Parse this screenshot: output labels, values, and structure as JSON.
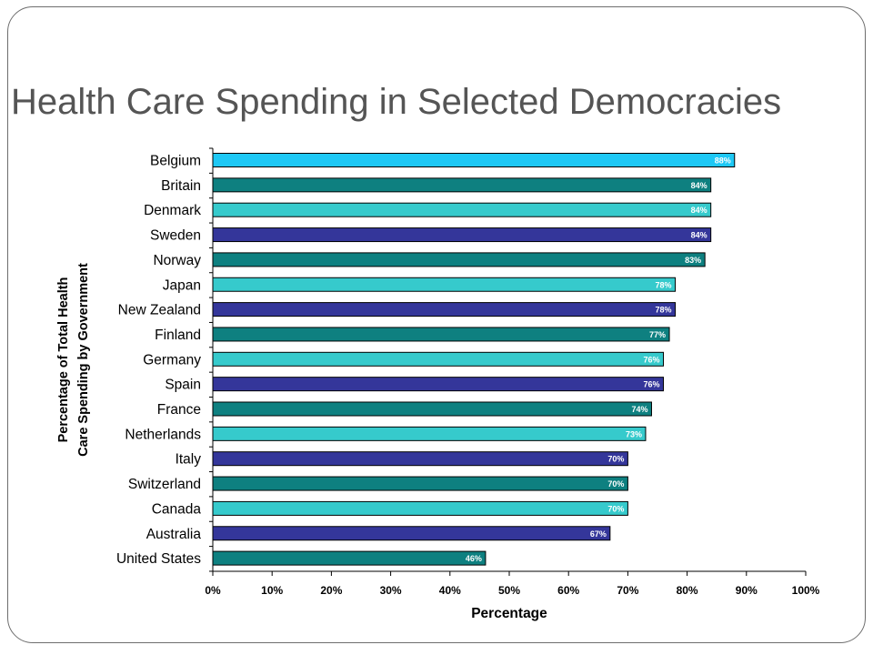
{
  "slide": {
    "title": "Health Care Spending in Selected Democracies"
  },
  "chart_data": {
    "type": "bar",
    "orientation": "horizontal",
    "title": "Health Care Spending in Selected Democracies",
    "xlabel": "Percentage",
    "ylabel_lines": [
      "Percentage of Total Health",
      "Care Spending by Government"
    ],
    "xlim": [
      0,
      100
    ],
    "x_ticks": [
      "0%",
      "10%",
      "20%",
      "30%",
      "40%",
      "50%",
      "60%",
      "70%",
      "80%",
      "90%",
      "100%"
    ],
    "grid": false,
    "value_labels": "inside-end",
    "bars": [
      {
        "label": "Belgium",
        "value": 88,
        "value_label": "88%",
        "color": "#1EC8F5"
      },
      {
        "label": "Britain",
        "value": 84,
        "value_label": "84%",
        "color": "#0E8080"
      },
      {
        "label": "Denmark",
        "value": 84,
        "value_label": "84%",
        "color": "#36CACC"
      },
      {
        "label": "Sweden",
        "value": 84,
        "value_label": "84%",
        "color": "#34369A"
      },
      {
        "label": "Norway",
        "value": 83,
        "value_label": "83%",
        "color": "#0E8080"
      },
      {
        "label": "Japan",
        "value": 78,
        "value_label": "78%",
        "color": "#36CACC"
      },
      {
        "label": "New Zealand",
        "value": 78,
        "value_label": "78%",
        "color": "#34369A"
      },
      {
        "label": "Finland",
        "value": 77,
        "value_label": "77%",
        "color": "#0E8080"
      },
      {
        "label": "Germany",
        "value": 76,
        "value_label": "76%",
        "color": "#36CACC"
      },
      {
        "label": "Spain",
        "value": 76,
        "value_label": "76%",
        "color": "#34369A"
      },
      {
        "label": "France",
        "value": 74,
        "value_label": "74%",
        "color": "#0E8080"
      },
      {
        "label": "Netherlands",
        "value": 73,
        "value_label": "73%",
        "color": "#36CACC"
      },
      {
        "label": "Italy",
        "value": 70,
        "value_label": "70%",
        "color": "#34369A"
      },
      {
        "label": "Switzerland",
        "value": 70,
        "value_label": "70%",
        "color": "#0E8080"
      },
      {
        "label": "Canada",
        "value": 70,
        "value_label": "70%",
        "color": "#36CACC"
      },
      {
        "label": "Australia",
        "value": 67,
        "value_label": "67%",
        "color": "#34369A"
      },
      {
        "label": "United States",
        "value": 46,
        "value_label": "46%",
        "color": "#0E8080"
      }
    ]
  }
}
